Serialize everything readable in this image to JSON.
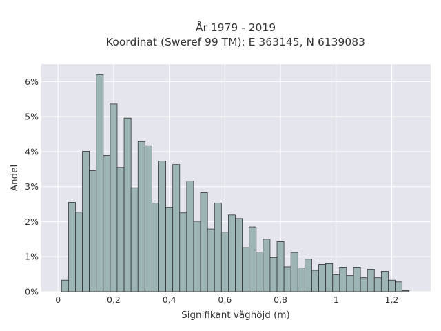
{
  "chart_data": {
    "type": "bar",
    "title_line1": "År 1979 - 2019",
    "title_line2": "Koordinat (Sweref 99 TM): E 363145, N 6139083",
    "xlabel": "Signifikant våghöjd (m)",
    "ylabel": "Andel",
    "xlim": [
      -0.06,
      1.34
    ],
    "ylim": [
      0,
      6.5
    ],
    "bin_width": 0.025,
    "x_ticks": [
      {
        "value": 0,
        "label": "0"
      },
      {
        "value": 0.2,
        "label": "0,2"
      },
      {
        "value": 0.4,
        "label": "0,4"
      },
      {
        "value": 0.6,
        "label": "0,6"
      },
      {
        "value": 0.8,
        "label": "0,8"
      },
      {
        "value": 1.0,
        "label": "1"
      },
      {
        "value": 1.2,
        "label": "1,2"
      }
    ],
    "y_ticks": [
      {
        "value": 0,
        "label": "0%"
      },
      {
        "value": 1,
        "label": "1%"
      },
      {
        "value": 2,
        "label": "2%"
      },
      {
        "value": 3,
        "label": "3%"
      },
      {
        "value": 4,
        "label": "4%"
      },
      {
        "value": 5,
        "label": "5%"
      },
      {
        "value": 6,
        "label": "6%"
      }
    ],
    "bins_start": [
      0.0125,
      0.0375,
      0.0625,
      0.0875,
      0.1125,
      0.1375,
      0.1625,
      0.1875,
      0.2125,
      0.2375,
      0.2625,
      0.2875,
      0.3125,
      0.3375,
      0.3625,
      0.3875,
      0.4125,
      0.4375,
      0.4625,
      0.4875,
      0.5125,
      0.5375,
      0.5625,
      0.5875,
      0.6125,
      0.6375,
      0.6625,
      0.6875,
      0.7125,
      0.7375,
      0.7625,
      0.7875,
      0.8125,
      0.8375,
      0.8625,
      0.8875,
      0.9125,
      0.9375,
      0.9625,
      0.9875,
      1.0125,
      1.0375,
      1.0625,
      1.0875,
      1.1125,
      1.1375,
      1.1625,
      1.1875,
      1.2125,
      1.2375,
      1.2625
    ],
    "values": [
      0.33,
      2.55,
      2.27,
      4.01,
      3.46,
      6.2,
      3.89,
      5.36,
      3.55,
      4.96,
      2.97,
      4.29,
      4.17,
      2.53,
      3.73,
      2.41,
      3.63,
      2.25,
      3.16,
      2.01,
      2.83,
      1.79,
      2.53,
      1.7,
      2.19,
      2.09,
      1.26,
      1.85,
      1.13,
      1.5,
      0.98,
      1.43,
      0.71,
      1.12,
      0.68,
      0.93,
      0.61,
      0.78,
      0.8,
      0.48,
      0.7,
      0.46,
      0.7,
      0.4,
      0.64,
      0.4,
      0.58,
      0.33,
      0.28,
      0.03,
      0.0
    ],
    "colors": {
      "plot_background": "#e5e5ee",
      "grid": "#ffffff",
      "bar_fill": "#9eb5b5",
      "bar_stroke": "#333333"
    }
  }
}
